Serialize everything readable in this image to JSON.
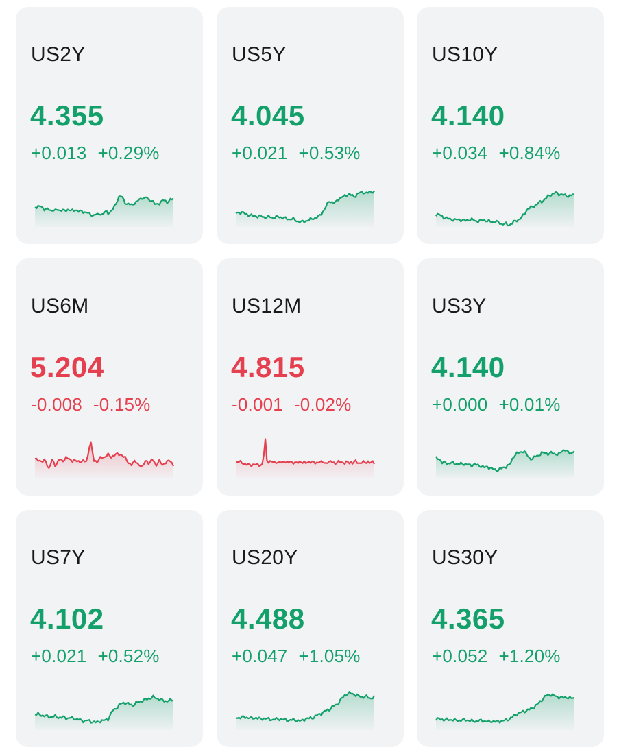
{
  "colors": {
    "up": "#14a06a",
    "down": "#e5404f",
    "card_bg": "#f2f3f5"
  },
  "quotes": [
    {
      "symbol": "US2Y",
      "price": "4.355",
      "change": "+0.013",
      "change_pct": "+0.29%",
      "direction": "up",
      "sparkline": [
        38,
        40,
        38,
        38,
        42,
        43,
        42,
        44,
        43,
        45,
        42,
        44,
        43,
        45,
        44,
        42,
        44,
        45,
        43,
        44,
        46,
        45,
        47,
        46,
        49,
        50,
        52,
        49,
        51,
        48,
        50,
        47,
        46,
        48,
        45,
        42,
        36,
        28,
        22,
        25,
        30,
        35,
        34,
        37,
        34,
        33,
        30,
        28,
        25,
        27,
        24,
        30,
        28,
        32,
        36,
        34,
        33,
        30,
        29,
        32,
        30,
        28,
        27
      ]
    },
    {
      "symbol": "US5Y",
      "price": "4.045",
      "change": "+0.021",
      "change_pct": "+0.53%",
      "direction": "up",
      "sparkline": [
        48,
        47,
        47,
        48,
        50,
        51,
        52,
        52,
        53,
        52,
        54,
        54,
        53,
        55,
        54,
        53,
        54,
        55,
        56,
        57,
        56,
        58,
        60,
        61,
        60,
        59,
        58,
        56,
        55,
        54,
        50,
        45,
        38,
        30,
        32,
        34,
        28,
        26,
        24,
        22,
        20,
        22,
        24,
        20,
        18,
        17,
        19,
        18,
        16,
        17
      ]
    },
    {
      "symbol": "US10Y",
      "price": "4.140",
      "change": "+0.034",
      "change_pct": "+0.84%",
      "direction": "up",
      "sparkline": [
        50,
        50,
        53,
        55,
        56,
        57,
        58,
        57,
        58,
        59,
        58,
        57,
        58,
        60,
        59,
        58,
        59,
        60,
        61,
        60,
        62,
        64,
        63,
        66,
        63,
        60,
        58,
        55,
        50,
        42,
        40,
        38,
        35,
        32,
        30,
        26,
        22,
        20,
        18,
        20,
        21,
        22,
        23,
        22,
        21
      ]
    },
    {
      "symbol": "US6M",
      "price": "5.204",
      "change": "-0.008",
      "change_pct": "-0.15%",
      "direction": "down",
      "sparkline": [
        40,
        40,
        45,
        40,
        55,
        40,
        50,
        40,
        42,
        38,
        40,
        42,
        43,
        43,
        43,
        43,
        12,
        42,
        43,
        38,
        37,
        33,
        37,
        33,
        33,
        33,
        38,
        45,
        48,
        42,
        48,
        52,
        40,
        48,
        38,
        50,
        42,
        48,
        45,
        40,
        50
      ]
    },
    {
      "symbol": "US12M",
      "price": "4.815",
      "change": "-0.001",
      "change_pct": "-0.02%",
      "direction": "down",
      "sparkline": [
        44,
        44,
        44,
        44,
        46,
        48,
        48,
        48,
        48,
        48,
        48,
        48,
        48,
        48,
        48,
        6,
        43,
        43,
        44,
        44,
        45,
        43,
        46,
        44,
        45,
        42,
        44,
        46,
        43,
        45,
        44,
        46,
        45,
        43,
        44,
        45,
        46,
        44,
        43,
        44,
        45,
        46,
        44,
        43,
        45,
        44,
        46,
        44,
        45,
        43,
        44,
        46,
        45,
        44,
        43,
        45,
        46,
        44,
        45,
        44,
        46,
        43,
        44,
        45,
        46,
        44,
        45,
        44,
        43,
        46,
        44,
        45
      ]
    },
    {
      "symbol": "US3Y",
      "price": "4.140",
      "change": "+0.000",
      "change_pct": "+0.01%",
      "direction": "up",
      "sparkline": [
        38,
        39,
        46,
        44,
        47,
        45,
        46,
        48,
        46,
        47,
        48,
        49,
        47,
        49,
        50,
        52,
        51,
        53,
        55,
        56,
        54,
        52,
        50,
        48,
        36,
        32,
        30,
        28,
        32,
        38,
        40,
        35,
        34,
        31,
        30,
        33,
        30,
        32,
        34,
        28,
        26,
        30,
        31,
        28
      ]
    },
    {
      "symbol": "US7Y",
      "price": "4.102",
      "change": "+0.021",
      "change_pct": "+0.52%",
      "direction": "up",
      "sparkline": [
        45,
        45,
        47,
        48,
        49,
        48,
        50,
        49,
        51,
        50,
        52,
        53,
        55,
        54,
        56,
        57,
        55,
        54,
        52,
        40,
        36,
        30,
        28,
        30,
        32,
        28,
        26,
        24,
        22,
        20,
        22,
        24,
        26,
        25,
        24
      ]
    },
    {
      "symbol": "US20Y",
      "price": "4.488",
      "change": "+0.047",
      "change_pct": "+1.05%",
      "direction": "up",
      "sparkline": [
        50,
        50,
        49,
        50,
        51,
        50,
        52,
        51,
        52,
        53,
        52,
        52,
        53,
        54,
        53,
        54,
        55,
        52,
        51,
        50,
        46,
        44,
        40,
        38,
        33,
        30,
        22,
        16,
        14,
        16,
        18,
        20,
        19,
        22,
        20
      ]
    },
    {
      "symbol": "US30Y",
      "price": "4.365",
      "change": "+0.052",
      "change_pct": "+1.20%",
      "direction": "up",
      "sparkline": [
        52,
        52,
        53,
        53,
        53,
        54,
        54,
        53,
        54,
        55,
        55,
        54,
        55,
        56,
        55,
        56,
        55,
        54,
        52,
        48,
        44,
        42,
        40,
        38,
        35,
        30,
        24,
        18,
        16,
        18,
        20,
        21,
        20,
        22,
        21
      ]
    }
  ]
}
